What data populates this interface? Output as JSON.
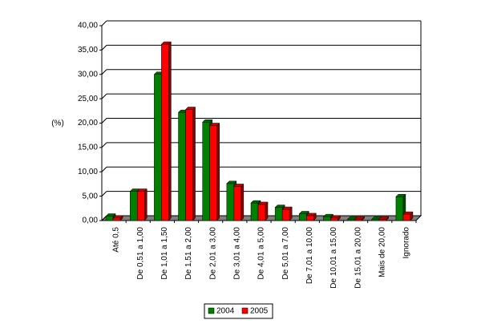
{
  "chart_data": {
    "type": "bar",
    "y_label": "(%)",
    "categories": [
      "Até 0,5",
      "De 0,51 a 1,00",
      "De 1,01 a 1,50",
      "De 1,51 a 2,00",
      "De 2,01 a 3,00",
      "De 3,01 a 4,00",
      "De 4,01 a 5,00",
      "De 5,01 a 7,00",
      "De 7,01 a 10,00",
      "De 10,01 a 15,00",
      "De 15,01 a 20,00",
      "Mais de 20,00",
      "Ignorado"
    ],
    "series": [
      {
        "name": "2004",
        "color": "#008000",
        "values": [
          0.9,
          6.0,
          30.0,
          22.2,
          20.2,
          7.6,
          3.6,
          2.7,
          1.4,
          0.8,
          0.3,
          0.3,
          4.9
        ]
      },
      {
        "name": "2005",
        "color": "#ff0000",
        "values": [
          0.5,
          6.0,
          36.2,
          22.8,
          19.5,
          7.0,
          3.3,
          2.3,
          1.0,
          0.5,
          0.3,
          0.3,
          1.3
        ]
      }
    ],
    "ylim": [
      0,
      40
    ],
    "yticks": [
      {
        "value": 0,
        "label": "0,00"
      },
      {
        "value": 5,
        "label": "5,00"
      },
      {
        "value": 10,
        "label": "10,00"
      },
      {
        "value": 15,
        "label": "15,00"
      },
      {
        "value": 20,
        "label": "20,00"
      },
      {
        "value": 25,
        "label": "25,00"
      },
      {
        "value": 30,
        "label": "30,00"
      },
      {
        "value": 35,
        "label": "35,00"
      },
      {
        "value": 40,
        "label": "40,00"
      }
    ],
    "grid": true
  }
}
